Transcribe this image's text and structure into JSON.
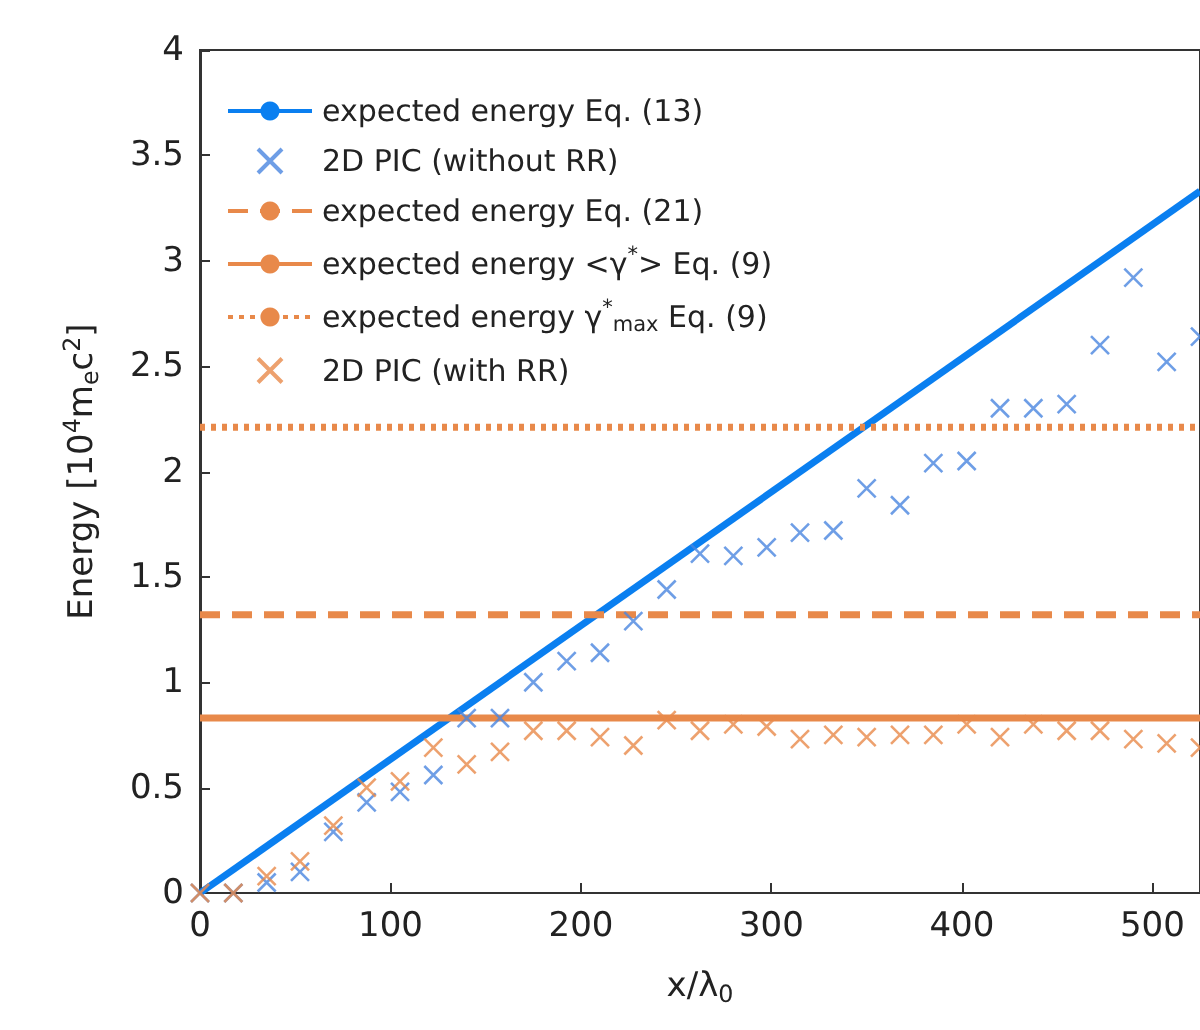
{
  "chart_data": {
    "type": "scatter",
    "xlabel": "x/λ$_{0}$",
    "ylabel": "Energy [10$^{4}$m$_{e}$c$^{2}$]",
    "xlim": [
      0,
      525
    ],
    "xticks": [
      0,
      100,
      200,
      300,
      400,
      500
    ],
    "ylim": [
      0,
      4
    ],
    "yticks": [
      0,
      0.5,
      1,
      1.5,
      2,
      2.5,
      3,
      3.5,
      4
    ],
    "grid": false,
    "legend": "top left",
    "series": [
      {
        "name": "expected energy Eq. (13)",
        "type": "line",
        "marker": "none",
        "line_style": "solid",
        "color": "#0a7ff0",
        "x": [
          0,
          525
        ],
        "values": [
          0,
          3.33
        ]
      },
      {
        "name": "2D PIC (without RR)",
        "marker": "cross",
        "color": "#4a86e0",
        "x": [
          0,
          17.5,
          35,
          52.5,
          70,
          87.5,
          105,
          122.5,
          140,
          157.5,
          175,
          192.5,
          210,
          227.5,
          245,
          262.5,
          280,
          297.5,
          315,
          332.5,
          350,
          367.5,
          385,
          402.5,
          420,
          437.5,
          455,
          472.5,
          490,
          507.5,
          525
        ],
        "values": [
          0,
          0,
          0.05,
          0.1,
          0.29,
          0.43,
          0.48,
          0.56,
          0.83,
          0.83,
          1.0,
          1.1,
          1.14,
          1.29,
          1.44,
          1.61,
          1.6,
          1.64,
          1.71,
          1.72,
          1.92,
          1.84,
          2.04,
          2.05,
          2.3,
          2.3,
          2.32,
          2.6,
          2.92,
          2.52,
          2.64
        ]
      },
      {
        "name": "expected energy Eq. (21)",
        "type": "line",
        "marker": "none",
        "line_style": "dashed",
        "color": "#e8894a",
        "x": [
          0,
          525
        ],
        "values": [
          1.32,
          1.32
        ]
      },
      {
        "name": "expected energy <γ$^{*}$> Eq. (9)",
        "type": "line",
        "marker": "none",
        "line_style": "solid",
        "color": "#e8894a",
        "x": [
          0,
          525
        ],
        "values": [
          0.83,
          0.83
        ]
      },
      {
        "name": "expected energy γ$^{*}$$_{max}$ Eq. (9)",
        "type": "line",
        "marker": "none",
        "line_style": "dotted",
        "color": "#e8894a",
        "x": [
          0,
          525
        ],
        "values": [
          2.21,
          2.21
        ]
      },
      {
        "name": "2D PIC (with RR)",
        "marker": "cross",
        "color": "#e8894a",
        "x": [
          0,
          17.5,
          35,
          52.5,
          70,
          87.5,
          105,
          122.5,
          140,
          157.5,
          175,
          192.5,
          210,
          227.5,
          245,
          262.5,
          280,
          297.5,
          315,
          332.5,
          350,
          367.5,
          385,
          402.5,
          420,
          437.5,
          455,
          472.5,
          490,
          507.5,
          525
        ],
        "values": [
          0,
          0,
          0.08,
          0.15,
          0.32,
          0.5,
          0.53,
          0.69,
          0.61,
          0.67,
          0.77,
          0.77,
          0.74,
          0.7,
          0.82,
          0.77,
          0.8,
          0.79,
          0.73,
          0.75,
          0.74,
          0.75,
          0.75,
          0.8,
          0.74,
          0.8,
          0.77,
          0.77,
          0.73,
          0.71,
          0.69
        ]
      }
    ]
  }
}
